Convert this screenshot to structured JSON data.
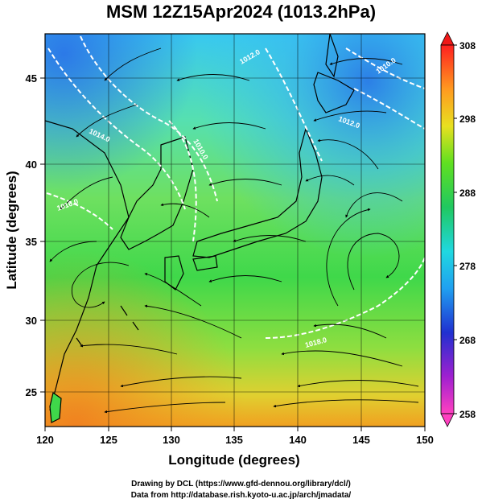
{
  "title": "MSM 12Z15Apr2024 (1013.2hPa)",
  "x_axis": {
    "label": "Longitude (degrees)",
    "ticks": [
      "120",
      "125",
      "130",
      "135",
      "140",
      "145",
      "150"
    ],
    "range": [
      120,
      150
    ]
  },
  "y_axis": {
    "label": "Latitude (degrees)",
    "ticks": [
      "25",
      "30",
      "35",
      "40",
      "45"
    ],
    "range": [
      22.4,
      47.6
    ]
  },
  "colorbar": {
    "ticks": [
      "308",
      "298",
      "288",
      "278",
      "268",
      "258"
    ],
    "range": [
      258,
      308
    ]
  },
  "isobar_labels": [
    "1014.0",
    "1010.0",
    "1012.0",
    "1016.0",
    "1010.0",
    "1012.0",
    "1018.0"
  ],
  "credits": {
    "line1": "Drawing by DCL (https://www.gfd-dennou.org/library/dcl/)",
    "line2": "Data from http://database.rish.kyoto-u.ac.jp/arch/jmadata/"
  }
}
